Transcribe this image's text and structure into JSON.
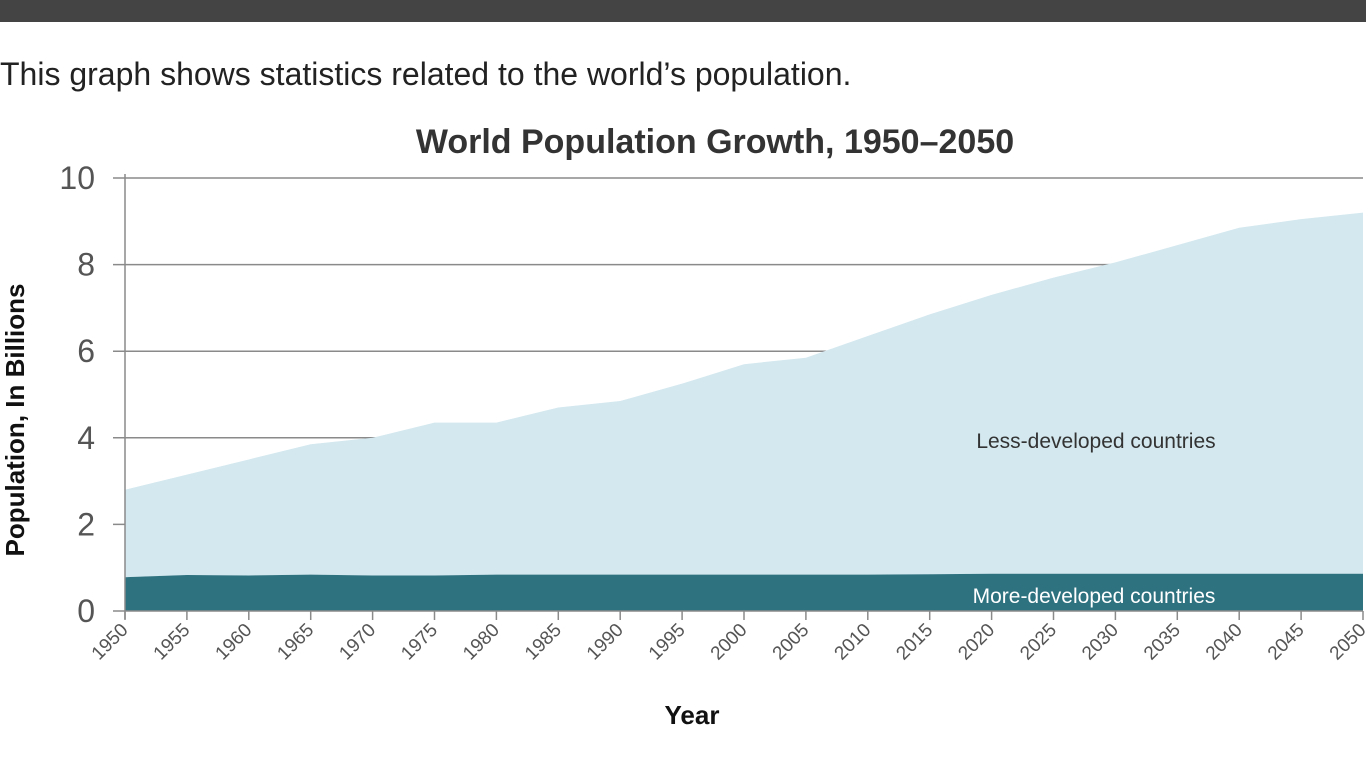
{
  "intro_text": "This graph shows statistics related to the world’s population.",
  "chart_data": {
    "type": "area",
    "stacked": true,
    "title": "World Population  Growth, 1950–2050",
    "xlabel": "Year",
    "ylabel": "Population, In Billions",
    "ylim": [
      0,
      10
    ],
    "yticks": [
      0,
      2,
      4,
      6,
      8,
      10
    ],
    "grid": true,
    "x": [
      1950,
      1955,
      1960,
      1965,
      1970,
      1975,
      1980,
      1985,
      1990,
      1995,
      2000,
      2005,
      2010,
      2015,
      2020,
      2025,
      2030,
      2035,
      2040,
      2045,
      2050
    ],
    "x_tick_labels": [
      "1950",
      "1955",
      "1960",
      "1965",
      "1970",
      "1975",
      "1980",
      "1985",
      "1990",
      "1995",
      "2000",
      "2005",
      "2010",
      "2015",
      "2020",
      "2025",
      "2030",
      "2035",
      "2040",
      "2045",
      "2050"
    ],
    "series": [
      {
        "name": "More-developed  countries",
        "color": "#2e7280",
        "label_color": "#ffffff",
        "values": [
          0.78,
          0.83,
          0.82,
          0.84,
          0.82,
          0.82,
          0.84,
          0.84,
          0.84,
          0.84,
          0.84,
          0.84,
          0.84,
          0.85,
          0.86,
          0.86,
          0.86,
          0.86,
          0.86,
          0.86,
          0.86
        ]
      },
      {
        "name": "Less-developed countries",
        "color": "#d3e8ef",
        "label_color": "#333333",
        "totals": [
          2.8,
          3.15,
          3.5,
          3.85,
          4.0,
          4.35,
          4.35,
          4.7,
          4.85,
          5.25,
          5.7,
          5.85,
          6.35,
          6.85,
          7.3,
          7.7,
          8.05,
          8.45,
          8.85,
          9.05,
          9.2
        ]
      }
    ]
  }
}
